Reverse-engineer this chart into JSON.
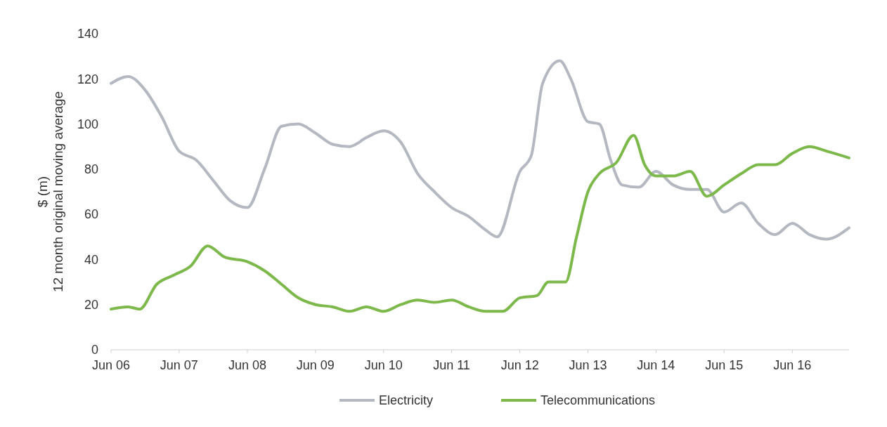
{
  "chart_data": {
    "type": "line",
    "ylabel": "$ (m)\n12 month original moving average",
    "ylim": [
      0,
      140
    ],
    "yticks": [
      0,
      20,
      40,
      60,
      80,
      100,
      120,
      140
    ],
    "xlim": [
      "2006-06",
      "2017-04"
    ],
    "xticks": [
      {
        "value": "2006-06",
        "label": "Jun 06"
      },
      {
        "value": "2007-06",
        "label": "Jun 07"
      },
      {
        "value": "2008-06",
        "label": "Jun 08"
      },
      {
        "value": "2009-06",
        "label": "Jun 09"
      },
      {
        "value": "2010-06",
        "label": "Jun 10"
      },
      {
        "value": "2011-06",
        "label": "Jun 11"
      },
      {
        "value": "2012-06",
        "label": "Jun 12"
      },
      {
        "value": "2013-06",
        "label": "Jun 13"
      },
      {
        "value": "2014-06",
        "label": "Jun 14"
      },
      {
        "value": "2015-06",
        "label": "Jun 15"
      },
      {
        "value": "2016-06",
        "label": "Jun 16"
      }
    ],
    "grid": false,
    "legend": "bottom",
    "marker": "none",
    "line_style": "solid",
    "series": [
      {
        "name": "Electricity",
        "color": "#b4b8c0",
        "x": [
          "2006-06",
          "2006-09",
          "2006-12",
          "2007-03",
          "2007-06",
          "2007-09",
          "2007-12",
          "2008-03",
          "2008-06",
          "2008-09",
          "2008-12",
          "2009-03",
          "2009-06",
          "2009-09",
          "2009-12",
          "2010-03",
          "2010-06",
          "2010-09",
          "2010-12",
          "2011-03",
          "2011-06",
          "2011-09",
          "2011-12",
          "2012-02",
          "2012-06",
          "2012-08",
          "2012-10",
          "2013-01",
          "2013-03",
          "2013-06",
          "2013-08",
          "2013-10",
          "2013-12",
          "2014-03",
          "2014-06",
          "2014-09",
          "2014-12",
          "2015-03",
          "2015-06",
          "2015-09",
          "2015-12",
          "2016-03",
          "2016-06",
          "2016-09",
          "2016-12",
          "2017-04"
        ],
        "values": [
          118,
          121,
          115,
          103,
          88,
          84,
          75,
          66,
          63,
          80,
          99,
          100,
          96,
          91,
          90,
          94,
          97,
          92,
          78,
          70,
          63,
          59,
          53,
          50,
          79,
          86,
          118,
          128,
          120,
          101,
          100,
          84,
          73,
          72,
          79,
          73,
          71,
          71,
          61,
          65,
          56,
          51,
          56,
          51,
          49,
          54
        ]
      },
      {
        "name": "Telecommunications",
        "color": "#7cb84a",
        "x": [
          "2006-06",
          "2006-09",
          "2006-11",
          "2007-02",
          "2007-05",
          "2007-08",
          "2007-11",
          "2008-02",
          "2008-06",
          "2008-09",
          "2008-12",
          "2009-03",
          "2009-06",
          "2009-09",
          "2009-12",
          "2010-03",
          "2010-06",
          "2010-09",
          "2010-12",
          "2011-03",
          "2011-06",
          "2011-09",
          "2011-12",
          "2012-03",
          "2012-06",
          "2012-09",
          "2012-11",
          "2013-02",
          "2013-04",
          "2013-06",
          "2013-08",
          "2013-11",
          "2014-02",
          "2014-04",
          "2014-06",
          "2014-09",
          "2014-12",
          "2015-03",
          "2015-06",
          "2015-09",
          "2015-12",
          "2016-03",
          "2016-06",
          "2016-09",
          "2016-12",
          "2017-04"
        ],
        "values": [
          18,
          19,
          18,
          29,
          33,
          37,
          46,
          41,
          39,
          35,
          29,
          23,
          20,
          19,
          17,
          19,
          17,
          20,
          22,
          21,
          22,
          19,
          17,
          17,
          23,
          24,
          30,
          30,
          50,
          70,
          78,
          83,
          95,
          82,
          77,
          77,
          79,
          68,
          73,
          78,
          82,
          82,
          87,
          90,
          88,
          85
        ]
      }
    ]
  }
}
